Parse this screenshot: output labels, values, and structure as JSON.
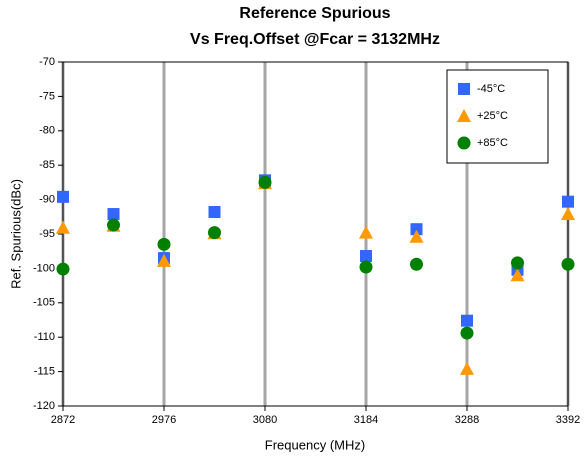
{
  "chart_data": {
    "type": "scatter",
    "title": [
      "Reference Spurious",
      "Vs Freq.Offset @Fcar = 3132MHz"
    ],
    "x_label": "Frequency (MHz)",
    "y_label": "Ref. Spurious(dBc)",
    "x": [
      2872,
      2924,
      2976,
      3028,
      3080,
      3184,
      3236,
      3288,
      3340,
      3392
    ],
    "series": [
      {
        "name": "-45°C",
        "color": "#3366ff",
        "marker": "square",
        "values": [
          -89.6,
          -92.1,
          -98.5,
          -91.8,
          -87.2,
          -98.2,
          -94.3,
          -107.6,
          -100.2,
          -90.3
        ]
      },
      {
        "name": "+25°C",
        "color": "#ff9900",
        "marker": "triangle",
        "values": [
          -94.1,
          -93.8,
          -98.9,
          -94.9,
          -87.6,
          -94.8,
          -95.4,
          -114.6,
          -101.0,
          -92.1
        ]
      },
      {
        "name": "+85°C",
        "color": "#008000",
        "marker": "circle",
        "values": [
          -100.1,
          -93.7,
          -96.5,
          -94.8,
          -87.5,
          -99.8,
          -99.4,
          -109.4,
          -99.2,
          -99.4
        ]
      }
    ],
    "xlim": [
      2872,
      3392
    ],
    "xticks": [
      2872,
      2976,
      3080,
      3184,
      3288,
      3392
    ],
    "ylim": [
      -120,
      -70
    ],
    "yticks": [
      -120,
      -115,
      -110,
      -105,
      -100,
      -95,
      -90,
      -85,
      -80,
      -75,
      -70
    ],
    "grid": "x",
    "legend": "top-right"
  }
}
